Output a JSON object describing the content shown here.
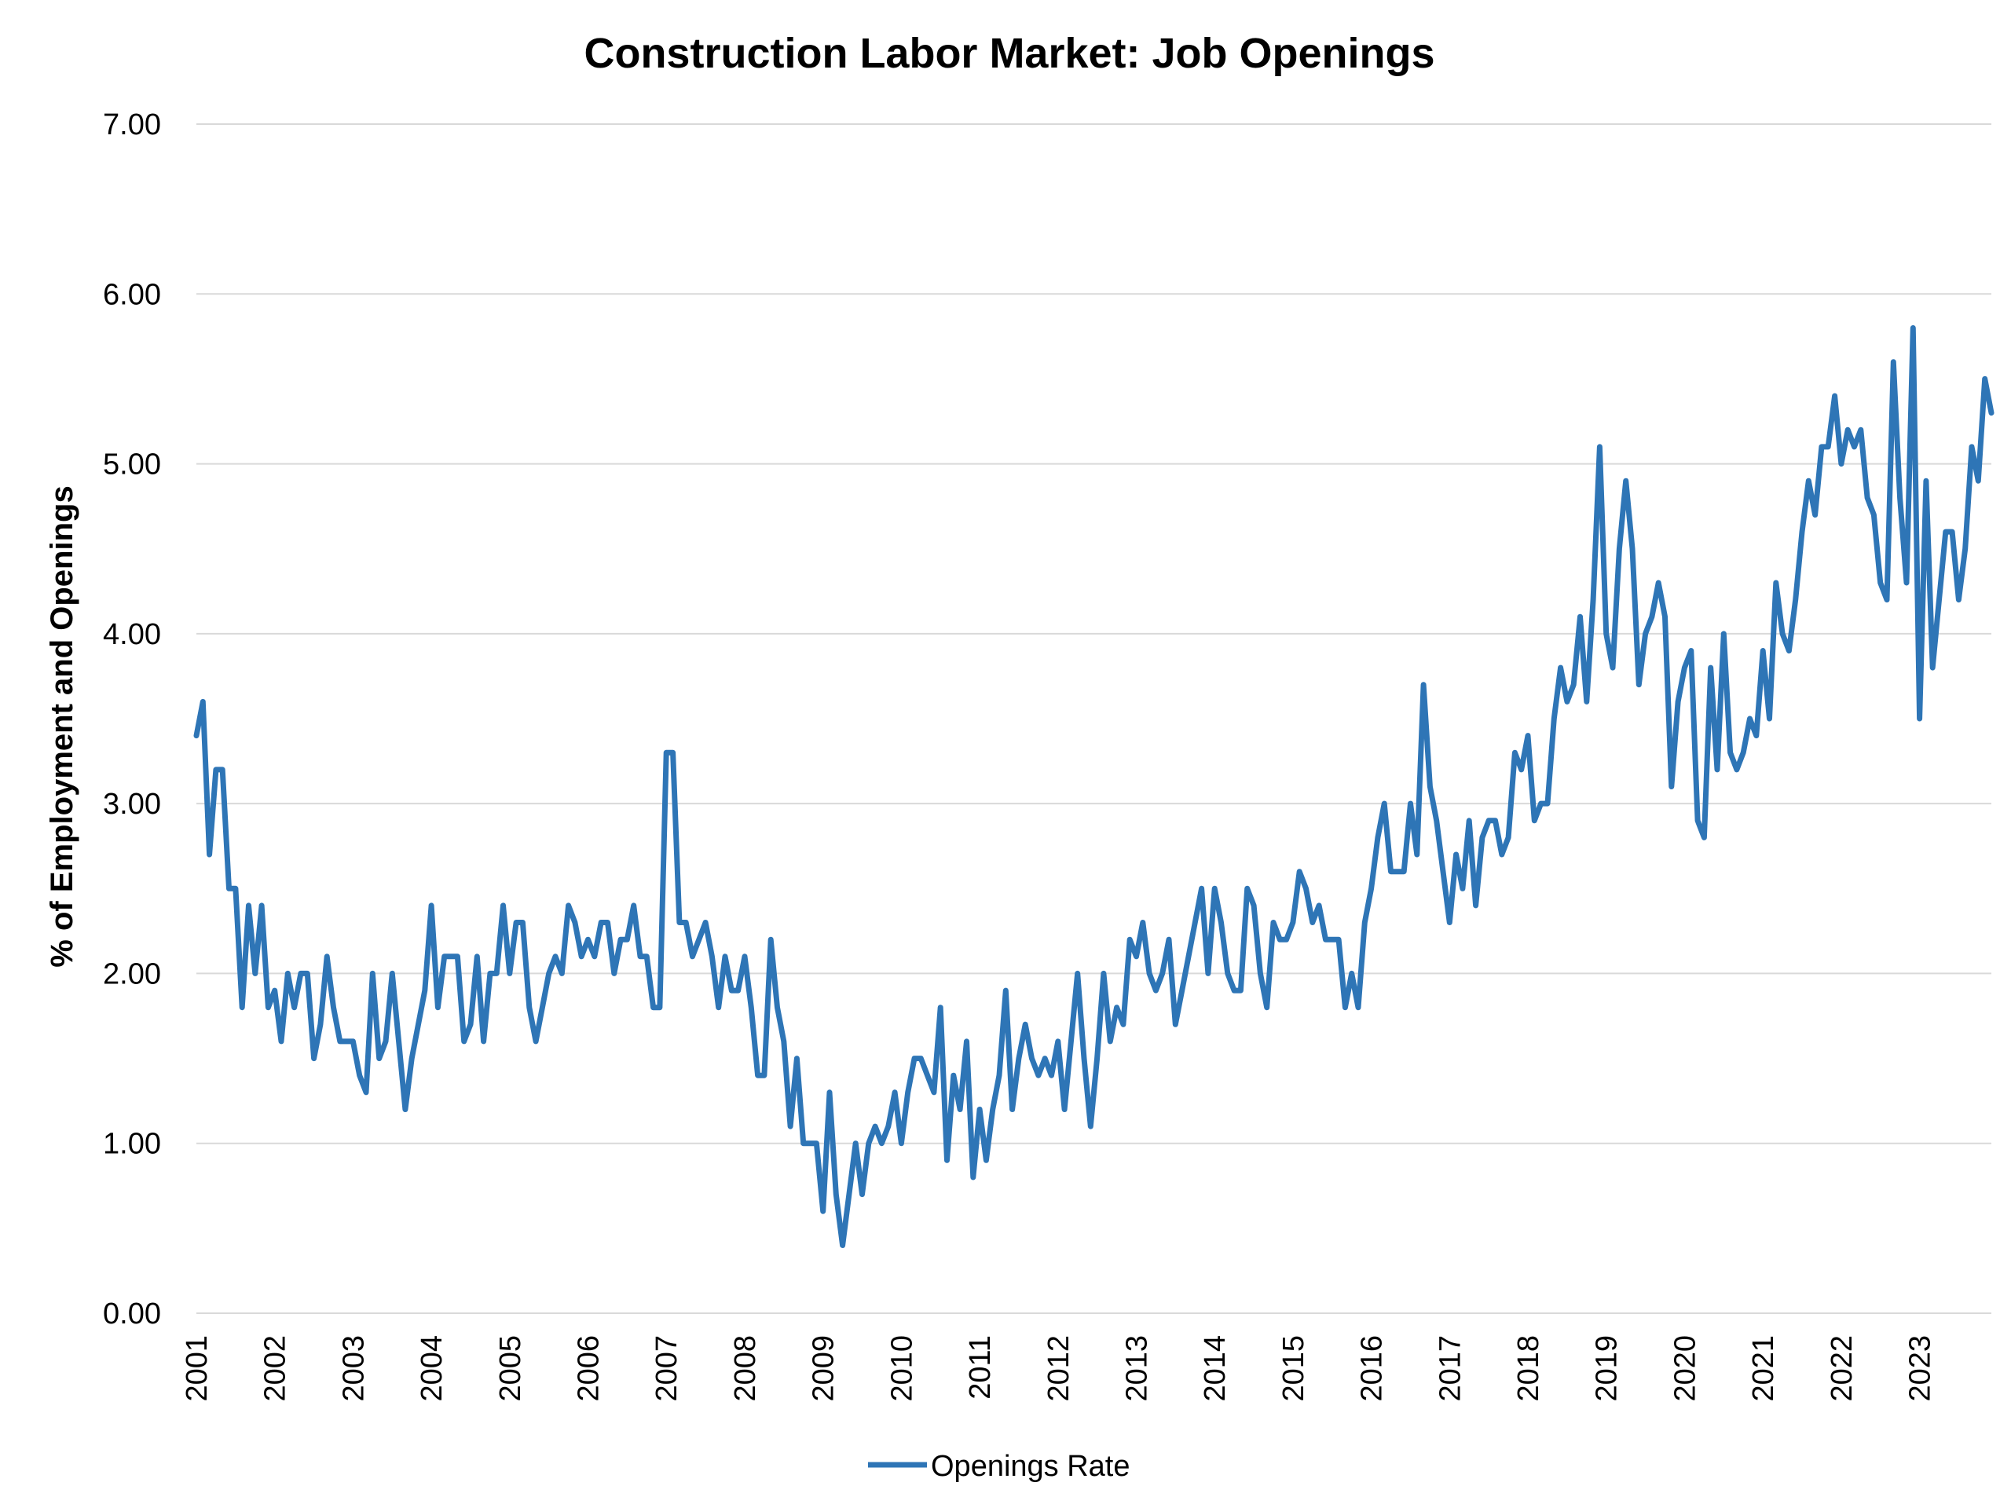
{
  "chart_data": {
    "type": "line",
    "title": "Construction Labor Market: Job Openings",
    "ylabel": "% of Employment and Openings",
    "xlabel": "",
    "ylim": [
      0,
      7
    ],
    "yticks": [
      "0.00",
      "1.00",
      "2.00",
      "3.00",
      "4.00",
      "5.00",
      "6.00",
      "7.00"
    ],
    "xlim": [
      2001,
      2023.917
    ],
    "xticks": [
      "2001",
      "2002",
      "2003",
      "2004",
      "2005",
      "2006",
      "2007",
      "2008",
      "2009",
      "2010",
      "2011",
      "2012",
      "2013",
      "2014",
      "2015",
      "2016",
      "2017",
      "2018",
      "2019",
      "2020",
      "2021",
      "2022",
      "2023"
    ],
    "grid": "horizontal",
    "legend_position": "bottom",
    "series_color": "#2e75b6",
    "series": [
      {
        "name": "Openings Rate",
        "start": "2001-01",
        "frequency": "monthly",
        "values": [
          3.4,
          3.6,
          2.7,
          3.2,
          3.2,
          2.5,
          2.5,
          1.8,
          2.4,
          2.0,
          2.4,
          1.8,
          1.9,
          1.6,
          2.0,
          1.8,
          2.0,
          2.0,
          1.5,
          1.7,
          2.1,
          1.8,
          1.6,
          1.6,
          1.6,
          1.4,
          1.3,
          2.0,
          1.5,
          1.6,
          2.0,
          1.6,
          1.2,
          1.5,
          1.7,
          1.9,
          2.4,
          1.8,
          2.1,
          2.1,
          2.1,
          1.6,
          1.7,
          2.1,
          1.6,
          2.0,
          2.0,
          2.4,
          2.0,
          2.3,
          2.3,
          1.8,
          1.6,
          1.8,
          2.0,
          2.1,
          2.0,
          2.4,
          2.3,
          2.1,
          2.2,
          2.1,
          2.3,
          2.3,
          2.0,
          2.2,
          2.2,
          2.4,
          2.1,
          2.1,
          1.8,
          1.8,
          3.3,
          3.3,
          2.3,
          2.3,
          2.1,
          2.2,
          2.3,
          2.1,
          1.8,
          2.1,
          1.9,
          1.9,
          2.1,
          1.8,
          1.4,
          1.4,
          2.2,
          1.8,
          1.6,
          1.1,
          1.5,
          1.0,
          1.0,
          1.0,
          0.6,
          1.3,
          0.7,
          0.4,
          0.7,
          1.0,
          0.7,
          1.0,
          1.1,
          1.0,
          1.1,
          1.3,
          1.0,
          1.3,
          1.5,
          1.5,
          1.4,
          1.3,
          1.8,
          0.9,
          1.4,
          1.2,
          1.6,
          0.8,
          1.2,
          0.9,
          1.2,
          1.4,
          1.9,
          1.2,
          1.5,
          1.7,
          1.5,
          1.4,
          1.5,
          1.4,
          1.6,
          1.2,
          1.6,
          2.0,
          1.5,
          1.1,
          1.5,
          2.0,
          1.6,
          1.8,
          1.7,
          2.2,
          2.1,
          2.3,
          2.0,
          1.9,
          2.0,
          2.2,
          1.7,
          1.9,
          2.1,
          2.3,
          2.5,
          2.0,
          2.5,
          2.3,
          2.0,
          1.9,
          1.9,
          2.5,
          2.4,
          2.0,
          1.8,
          2.3,
          2.2,
          2.2,
          2.3,
          2.6,
          2.5,
          2.3,
          2.4,
          2.2,
          2.2,
          2.2,
          1.8,
          2.0,
          1.8,
          2.3,
          2.5,
          2.8,
          3.0,
          2.6,
          2.6,
          2.6,
          3.0,
          2.7,
          3.7,
          3.1,
          2.9,
          2.6,
          2.3,
          2.7,
          2.5,
          2.9,
          2.4,
          2.8,
          2.9,
          2.9,
          2.7,
          2.8,
          3.3,
          3.2,
          3.4,
          2.9,
          3.0,
          3.0,
          3.5,
          3.8,
          3.6,
          3.7,
          4.1,
          3.6,
          4.2,
          5.1,
          4.0,
          3.8,
          4.5,
          4.9,
          4.5,
          3.7,
          4.0,
          4.1,
          4.3,
          4.1,
          3.1,
          3.6,
          3.8,
          3.9,
          2.9,
          2.8,
          3.8,
          3.2,
          4.0,
          3.3,
          3.2,
          3.3,
          3.5,
          3.4,
          3.9,
          3.5,
          4.3,
          4.0,
          3.9,
          4.2,
          4.6,
          4.9,
          4.7,
          5.1,
          5.1,
          5.4,
          5.0,
          5.2,
          5.1,
          5.2,
          4.8,
          4.7,
          4.3,
          4.2,
          5.6,
          4.8,
          4.3,
          5.8,
          3.5,
          4.9,
          3.8,
          4.2,
          4.6,
          4.6,
          4.2,
          4.5,
          5.1,
          4.9,
          5.5,
          5.3
        ]
      }
    ]
  }
}
